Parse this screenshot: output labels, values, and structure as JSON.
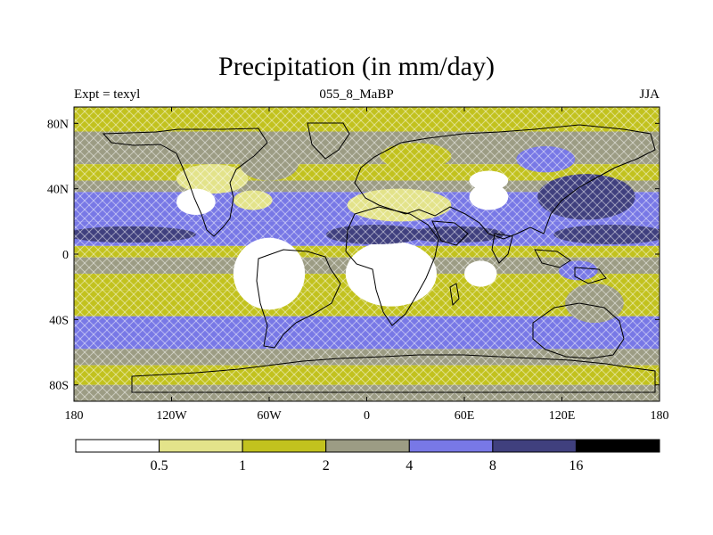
{
  "chart_data": {
    "type": "heatmap",
    "title": "Precipitation (in mm/day)",
    "subtitle_left": "Expt = texyl",
    "subtitle_center": "055_8_MaBP",
    "subtitle_right": "JJA",
    "x_ticks": [
      "180",
      "120W",
      "60W",
      "0",
      "60E",
      "120E",
      "180"
    ],
    "y_ticks": [
      "80N",
      "40N",
      "0",
      "40S",
      "80S"
    ],
    "colorbar": {
      "levels": [
        "0.5",
        "1",
        "2",
        "4",
        "8",
        "16"
      ],
      "colors": [
        "#ffffff",
        "#e3e38a",
        "#c2c21e",
        "#9c9c84",
        "#7878e6",
        "#40407e",
        "#000000"
      ]
    },
    "stripes": [
      {
        "lat_range": [
          90,
          75
        ],
        "color": "#c2c21e"
      },
      {
        "lat_range": [
          75,
          55
        ],
        "color": "#9c9c84"
      },
      {
        "lat_range": [
          55,
          45
        ],
        "color": "#c2c21e"
      },
      {
        "lat_range": [
          45,
          38
        ],
        "color": "#9c9c84"
      },
      {
        "lat_range": [
          38,
          20
        ],
        "color": "#7878e6"
      },
      {
        "lat_range": [
          20,
          5
        ],
        "color": "#7878e6"
      },
      {
        "lat_range": [
          5,
          -2
        ],
        "color": "#c2c21e"
      },
      {
        "lat_range": [
          -2,
          -12
        ],
        "color": "#9c9c84"
      },
      {
        "lat_range": [
          -12,
          -22
        ],
        "color": "#c2c21e"
      },
      {
        "lat_range": [
          -22,
          -38
        ],
        "color": "#c2c21e"
      },
      {
        "lat_range": [
          -38,
          -58
        ],
        "color": "#7878e6"
      },
      {
        "lat_range": [
          -58,
          -68
        ],
        "color": "#9c9c84"
      },
      {
        "lat_range": [
          -68,
          -80
        ],
        "color": "#c2c21e"
      },
      {
        "lat_range": [
          -80,
          -90
        ],
        "color": "#9c9c84"
      }
    ],
    "patches": [
      {
        "lon": -145,
        "lat": 12,
        "rlon": 40,
        "rlat": 5,
        "color": "#40407e"
      },
      {
        "lon": 150,
        "lat": 12,
        "rlon": 35,
        "rlat": 6,
        "color": "#40407e"
      },
      {
        "lon": 135,
        "lat": 35,
        "rlon": 30,
        "rlat": 14,
        "color": "#40407e"
      },
      {
        "lon": -95,
        "lat": 46,
        "rlon": 22,
        "rlat": 9,
        "color": "#e3e38a"
      },
      {
        "lon": -105,
        "lat": 32,
        "rlon": 12,
        "rlat": 8,
        "color": "#ffffff"
      },
      {
        "lon": -70,
        "lat": 33,
        "rlon": 12,
        "rlat": 6,
        "color": "#e3e38a"
      },
      {
        "lon": -60,
        "lat": -12,
        "rlon": 22,
        "rlat": 22,
        "color": "#ffffff"
      },
      {
        "lon": 15,
        "lat": -12,
        "rlon": 28,
        "rlat": 20,
        "color": "#ffffff"
      },
      {
        "lon": 20,
        "lat": 30,
        "rlon": 32,
        "rlat": 10,
        "color": "#e3e38a"
      },
      {
        "lon": 70,
        "lat": -12,
        "rlon": 10,
        "rlat": 8,
        "color": "#ffffff"
      },
      {
        "lon": 75,
        "lat": 45,
        "rlon": 12,
        "rlat": 6,
        "color": "#ffffff"
      },
      {
        "lon": 75,
        "lat": 35,
        "rlon": 12,
        "rlat": 8,
        "color": "#ffffff"
      },
      {
        "lon": 5,
        "lat": 12,
        "rlon": 30,
        "rlat": 6,
        "color": "#40407e"
      },
      {
        "lon": 55,
        "lat": 12,
        "rlon": 30,
        "rlat": 5,
        "color": "#40407e"
      },
      {
        "lon": 30,
        "lat": 60,
        "rlon": 22,
        "rlat": 8,
        "color": "#c2c21e"
      },
      {
        "lon": 110,
        "lat": 58,
        "rlon": 18,
        "rlat": 8,
        "color": "#7878e6"
      },
      {
        "lon": -60,
        "lat": 55,
        "rlon": 18,
        "rlat": 10,
        "color": "#9c9c84"
      },
      {
        "lon": 140,
        "lat": -30,
        "rlon": 18,
        "rlat": 12,
        "color": "#9c9c84"
      },
      {
        "lon": 130,
        "lat": -10,
        "rlon": 12,
        "rlat": 6,
        "color": "#7878e6"
      }
    ]
  }
}
